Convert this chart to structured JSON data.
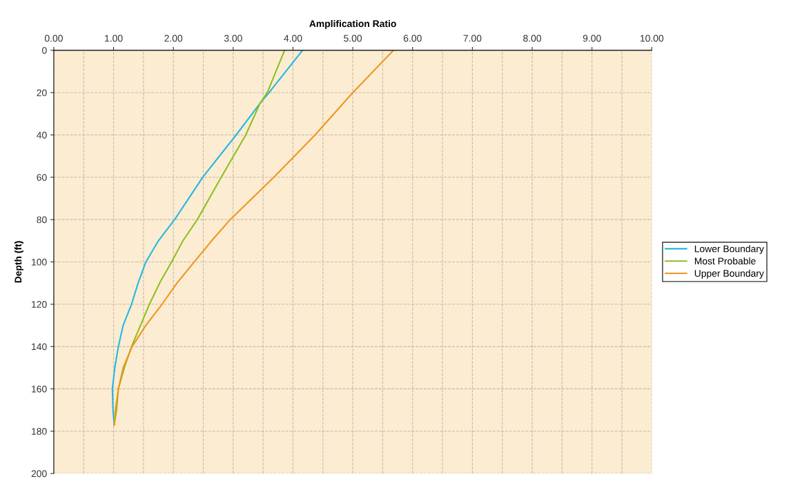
{
  "chart_data": {
    "type": "line",
    "xlabel": "Amplification Ratio",
    "ylabel": "Depth (ft)",
    "series": [
      {
        "name": "Lower Boundary",
        "color": "#22b8e0",
        "x": [
          4.16,
          3.6,
          3.45,
          3.05,
          2.49,
          2.02,
          1.75,
          1.54,
          1.41,
          1.3,
          1.16,
          1.08,
          1.02,
          0.98,
          0.99,
          1.01
        ],
        "values": [
          0,
          20,
          25,
          40,
          60,
          80,
          90,
          100,
          110,
          120,
          130,
          140,
          150,
          160,
          170,
          177
        ]
      },
      {
        "name": "Most Probable",
        "color": "#8cc01e",
        "x": [
          3.86,
          3.57,
          3.45,
          3.21,
          2.8,
          2.4,
          2.16,
          1.97,
          1.77,
          1.6,
          1.45,
          1.3,
          1.18,
          1.08,
          1.05,
          1.01
        ],
        "values": [
          0,
          20,
          25,
          40,
          60,
          80,
          90,
          100,
          110,
          120,
          130,
          140,
          150,
          160,
          170,
          177
        ]
      },
      {
        "name": "Upper Boundary",
        "color": "#f0941e",
        "x": [
          5.68,
          5.0,
          4.37,
          3.68,
          2.95,
          2.64,
          2.35,
          2.06,
          1.81,
          1.54,
          1.31,
          1.16,
          1.08,
          1.03,
          1.01
        ],
        "values": [
          0,
          20,
          40,
          60,
          80,
          90,
          100,
          110,
          120,
          130,
          140,
          150,
          160,
          170,
          177
        ]
      }
    ],
    "xlim": [
      0,
      10
    ],
    "ylim": [
      200,
      0
    ],
    "xticks": [
      {
        "value": 0,
        "label": "0.00"
      },
      {
        "value": 0.5,
        "label": null
      },
      {
        "value": 1,
        "label": "1.00"
      },
      {
        "value": 1.5,
        "label": null
      },
      {
        "value": 2,
        "label": "2.00"
      },
      {
        "value": 2.5,
        "label": null
      },
      {
        "value": 3,
        "label": "3.00"
      },
      {
        "value": 3.5,
        "label": null
      },
      {
        "value": 4,
        "label": "4.00"
      },
      {
        "value": 4.5,
        "label": null
      },
      {
        "value": 5,
        "label": "5.00"
      },
      {
        "value": 5.5,
        "label": null
      },
      {
        "value": 6,
        "label": "6.00"
      },
      {
        "value": 6.5,
        "label": null
      },
      {
        "value": 7,
        "label": "7.00"
      },
      {
        "value": 7.5,
        "label": null
      },
      {
        "value": 8,
        "label": "8.00"
      },
      {
        "value": 8.5,
        "label": null
      },
      {
        "value": 9,
        "label": "9.00"
      },
      {
        "value": 9.5,
        "label": null
      },
      {
        "value": 10,
        "label": "10.00"
      }
    ],
    "yticks": [
      0,
      20,
      40,
      60,
      80,
      100,
      120,
      140,
      160,
      180,
      200
    ],
    "grid": true,
    "legend": "right",
    "marker": "none",
    "line_style": "solid"
  }
}
